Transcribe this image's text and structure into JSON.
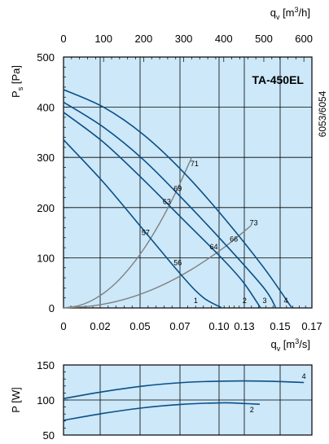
{
  "chart_data": [
    {
      "type": "line",
      "title": "TA-450EL",
      "side_label": "6053/6054",
      "ylabel_main": "P",
      "ylabel_sub": "s",
      "ylabel_unit": " [Pa]",
      "xlabel_bottom_main": "q",
      "xlabel_bottom_sub": "v",
      "xlabel_bottom_unit": " [m",
      "xlabel_bottom_sup": "3",
      "xlabel_bottom_end": "/s]",
      "xlabel_top_main": "q",
      "xlabel_top_sub": "v",
      "xlabel_top_unit": " [m",
      "xlabel_top_sup": "3",
      "xlabel_top_end": "/h]",
      "x_bottom_ticks": [
        "0",
        "0.02",
        "0.05",
        "0.07",
        "0.10",
        "0.13",
        "0.15",
        "0.17"
      ],
      "x_top_ticks": [
        "0",
        "100",
        "200",
        "300",
        "400",
        "500",
        "600"
      ],
      "y_ticks": [
        "0",
        "100",
        "200",
        "300",
        "400",
        "500"
      ],
      "xlim_m3h": [
        0,
        620
      ],
      "ylim": [
        0,
        500
      ],
      "grid": true,
      "series": [
        {
          "name": "1",
          "color": "#0b4f86",
          "x": [
            0,
            100,
            200,
            300,
            350,
            396
          ],
          "y": [
            335,
            250,
            155,
            60,
            20,
            0
          ]
        },
        {
          "name": "2",
          "color": "#0b4f86",
          "x": [
            0,
            100,
            200,
            300,
            400,
            450,
            492
          ],
          "y": [
            390,
            330,
            255,
            175,
            95,
            50,
            0
          ]
        },
        {
          "name": "3",
          "color": "#0b4f86",
          "x": [
            0,
            100,
            200,
            300,
            400,
            500,
            530
          ],
          "y": [
            410,
            360,
            295,
            215,
            130,
            40,
            0
          ]
        },
        {
          "name": "4",
          "color": "#0b4f86",
          "x": [
            0,
            100,
            200,
            300,
            400,
            500,
            570
          ],
          "y": [
            435,
            400,
            345,
            270,
            180,
            80,
            0
          ]
        }
      ],
      "system_curves": [
        {
          "color": "#808080",
          "x": [
            0,
            40,
            80,
            120,
            160,
            200,
            240,
            280,
            320
          ],
          "y": [
            0,
            5,
            19,
            42,
            75,
            117,
            169,
            230,
            300
          ]
        },
        {
          "color": "#808080",
          "x": [
            0,
            80,
            160,
            240,
            320,
            400,
            468
          ],
          "y": [
            0,
            5,
            19,
            43,
            77,
            120,
            164
          ]
        }
      ],
      "point_labels": [
        {
          "text": "1",
          "x": 330,
          "y": 15
        },
        {
          "text": "2",
          "x": 452,
          "y": 15
        },
        {
          "text": "3",
          "x": 502,
          "y": 15
        },
        {
          "text": "4",
          "x": 555,
          "y": 15
        },
        {
          "text": "71",
          "x": 327,
          "y": 287
        },
        {
          "text": "69",
          "x": 285,
          "y": 238
        },
        {
          "text": "63",
          "x": 258,
          "y": 212
        },
        {
          "text": "57",
          "x": 205,
          "y": 150
        },
        {
          "text": "56",
          "x": 285,
          "y": 90
        },
        {
          "text": "64",
          "x": 375,
          "y": 122
        },
        {
          "text": "66",
          "x": 425,
          "y": 137
        },
        {
          "text": "73",
          "x": 475,
          "y": 170
        }
      ]
    },
    {
      "type": "line",
      "ylabel": "P [W]",
      "y_ticks": [
        "50",
        "100",
        "150"
      ],
      "ylim": [
        50,
        150
      ],
      "xlim_m3h": [
        0,
        620
      ],
      "grid": true,
      "series": [
        {
          "name": "2",
          "color": "#0b4f86",
          "x": [
            0,
            100,
            200,
            300,
            400,
            450,
            490
          ],
          "y": [
            71,
            81,
            89,
            94,
            96,
            95,
            94
          ]
        },
        {
          "name": "4",
          "color": "#0b4f86",
          "x": [
            0,
            100,
            200,
            300,
            400,
            500,
            600
          ],
          "y": [
            102,
            112,
            120,
            125,
            127,
            127,
            125
          ]
        }
      ],
      "point_labels": [
        {
          "text": "2",
          "x": 470,
          "y": 86
        },
        {
          "text": "4",
          "x": 600,
          "y": 134
        }
      ]
    }
  ]
}
